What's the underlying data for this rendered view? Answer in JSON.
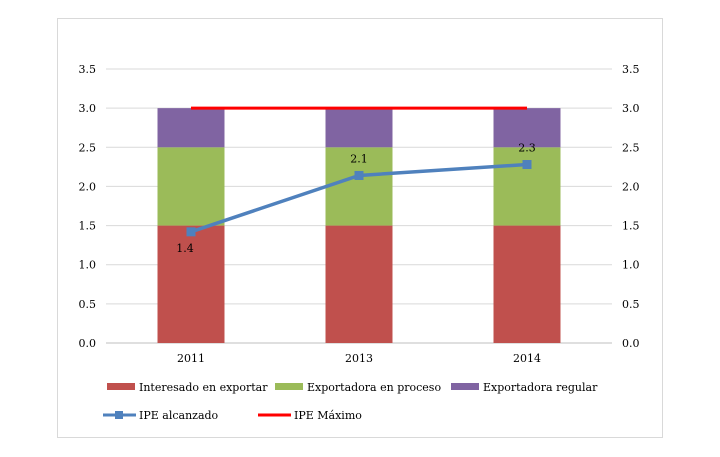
{
  "chart_data": {
    "type": "bar",
    "stacked": true,
    "categories": [
      "2011",
      "2013",
      "2014"
    ],
    "ylim": [
      0,
      3.5
    ],
    "yticks": [
      "0.0",
      "0.5",
      "1.0",
      "1.5",
      "2.0",
      "2.5",
      "3.0",
      "3.5"
    ],
    "secondary_yticks": [
      "0.0",
      "0.5",
      "1.0",
      "1.5",
      "2.0",
      "2.5",
      "3.0",
      "3.5"
    ],
    "grid": true,
    "legend_placement": "bottom",
    "series": [
      {
        "name": "Interesado en exportar",
        "type": "bar",
        "values": [
          1.5,
          1.5,
          1.5
        ],
        "color": "#c0504d"
      },
      {
        "name": "Exportadora en proceso",
        "type": "bar",
        "values": [
          1.0,
          1.0,
          1.0
        ],
        "color": "#9bbb59"
      },
      {
        "name": "Exportadora regular",
        "type": "bar",
        "values": [
          0.5,
          0.5,
          0.5
        ],
        "color": "#8064a2"
      },
      {
        "name": "IPE alcanzado",
        "type": "line",
        "values": [
          1.42,
          2.14,
          2.28
        ],
        "labels": [
          "1.4",
          "2.1",
          "2.3"
        ],
        "color": "#4f81bd",
        "marker": "square"
      },
      {
        "name": "IPE Máximo",
        "type": "line",
        "values": [
          3.0,
          3.0,
          3.0
        ],
        "color": "#ff0000"
      }
    ]
  }
}
